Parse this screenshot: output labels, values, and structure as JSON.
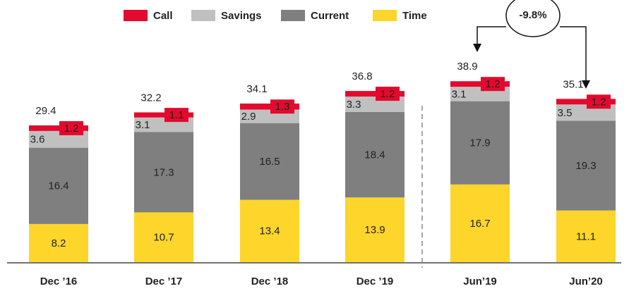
{
  "chart_data": {
    "type": "stacked-bar",
    "categories": [
      "Dec ’16",
      "Dec ’17",
      "Dec ’18",
      "Dec ’19",
      "Jun’19",
      "Jun’20"
    ],
    "series": [
      {
        "name": "Call",
        "color": "#e30a2d",
        "values": [
          1.2,
          1.1,
          1.3,
          1.2,
          1.2,
          1.2
        ]
      },
      {
        "name": "Savings",
        "color": "#c0c0c0",
        "values": [
          3.6,
          3.1,
          2.9,
          3.3,
          3.1,
          3.5
        ]
      },
      {
        "name": "Current",
        "color": "#7f7f7f",
        "values": [
          16.4,
          17.3,
          16.5,
          18.4,
          17.9,
          19.3
        ]
      },
      {
        "name": "Time",
        "color": "#fdd52b",
        "values": [
          8.2,
          10.7,
          13.4,
          13.9,
          16.7,
          11.1
        ]
      }
    ],
    "totals": [
      29.4,
      32.2,
      34.1,
      36.8,
      38.9,
      35.1
    ],
    "annotation": "-9.8%"
  }
}
